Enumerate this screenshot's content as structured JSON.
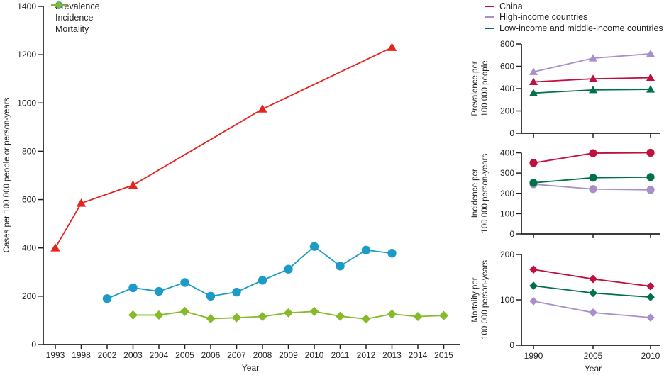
{
  "colors": {
    "axis": "#231f20",
    "text": "#231f20"
  },
  "chart_data": [
    {
      "id": "trend-chart",
      "type": "line",
      "title": "",
      "xlabel": "Year",
      "ylabel": "Cases per 100 000 people or person-years",
      "categories": [
        "1993",
        "1998",
        "2002",
        "2003",
        "2004",
        "2005",
        "2006",
        "2007",
        "2008",
        "2009",
        "2010",
        "2011",
        "2012",
        "2013",
        "2014",
        "2015"
      ],
      "ylim": [
        0,
        1400
      ],
      "yticks": [
        0,
        200,
        400,
        600,
        800,
        1000,
        1200,
        1400
      ],
      "grid": false,
      "legend_position": "top-left-inside",
      "series": [
        {
          "name": "Prevalence",
          "marker": "triangle",
          "color": "#e8231d",
          "x": [
            "1993",
            "1998",
            "2003",
            "2008",
            "2013"
          ],
          "values": [
            400,
            585,
            660,
            975,
            1230
          ]
        },
        {
          "name": "Incidence",
          "marker": "circle",
          "color": "#1b9bc6",
          "x": [
            "2002",
            "2003",
            "2004",
            "2005",
            "2006",
            "2007",
            "2008",
            "2009",
            "2010",
            "2011",
            "2012",
            "2013"
          ],
          "values": [
            190,
            235,
            220,
            257,
            200,
            217,
            266,
            312,
            406,
            325,
            391,
            378
          ]
        },
        {
          "name": "Mortality",
          "marker": "diamond",
          "color": "#85ba28",
          "x": [
            "2003",
            "2004",
            "2005",
            "2006",
            "2007",
            "2008",
            "2009",
            "2010",
            "2011",
            "2012",
            "2013",
            "2014",
            "2015"
          ],
          "values": [
            122,
            122,
            137,
            107,
            111,
            116,
            131,
            137,
            117,
            106,
            126,
            116,
            120
          ]
        }
      ]
    },
    {
      "id": "prevalence-by-region",
      "type": "line",
      "ylabel_lines": [
        "Prevalence per",
        "100 000 people"
      ],
      "categories": [
        "1990",
        "2005",
        "2010"
      ],
      "ylim": [
        0,
        800
      ],
      "yticks": [
        0,
        200,
        400,
        600,
        800
      ],
      "marker": "triangle",
      "series": [
        {
          "name": "China",
          "color": "#bf103e",
          "values": [
            460,
            488,
            498
          ]
        },
        {
          "name": "High-income countries",
          "color": "#a98fc9",
          "values": [
            550,
            672,
            712
          ]
        },
        {
          "name": "Low-income and middle-income countries",
          "color": "#00724a",
          "values": [
            360,
            388,
            393
          ]
        }
      ]
    },
    {
      "id": "incidence-by-region",
      "type": "line",
      "ylabel_lines": [
        "Incidence per",
        "100 000 person-years"
      ],
      "categories": [
        "1990",
        "2005",
        "2010"
      ],
      "ylim": [
        0,
        400
      ],
      "yticks": [
        0,
        100,
        200,
        300,
        400
      ],
      "marker": "circle",
      "series": [
        {
          "name": "China",
          "color": "#bf103e",
          "values": [
            350,
            398,
            400
          ]
        },
        {
          "name": "High-income countries",
          "color": "#a98fc9",
          "values": [
            245,
            221,
            217
          ]
        },
        {
          "name": "Low-income and middle-income countries",
          "color": "#00724a",
          "values": [
            252,
            277,
            280
          ]
        }
      ]
    },
    {
      "id": "mortality-by-region",
      "type": "line",
      "xlabel": "Year",
      "ylabel_lines": [
        "Mortality per",
        "100 000 person-years"
      ],
      "categories": [
        "1990",
        "2005",
        "2010"
      ],
      "ylim": [
        0,
        200
      ],
      "yticks": [
        0,
        100,
        200
      ],
      "marker": "diamond",
      "series": [
        {
          "name": "China",
          "color": "#bf103e",
          "values": [
            167,
            146,
            130
          ]
        },
        {
          "name": "High-income countries",
          "color": "#a98fc9",
          "values": [
            97,
            72,
            61
          ]
        },
        {
          "name": "Low-income and middle-income countries",
          "color": "#00724a",
          "values": [
            131,
            115,
            106
          ]
        }
      ]
    }
  ]
}
